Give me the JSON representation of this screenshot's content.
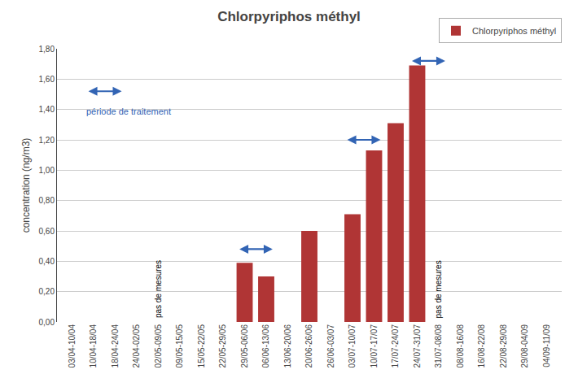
{
  "chart_data": {
    "type": "bar",
    "title": "Chlorpyriphos méthyl",
    "ylabel": "concentration (ng/m3)",
    "categories": [
      "03/04-10/04",
      "10/04-18/04",
      "18/04-24/04",
      "24/04-02/05",
      "02/05-09/05",
      "09/05-15/05",
      "15/05-22/05",
      "22/05-29/05",
      "29/05-06/06",
      "06/06-13/06",
      "13/06-20/06",
      "20/06-26/06",
      "26/06-03/07",
      "03/07-10/07",
      "10/07-17/07",
      "17/07-24/07",
      "24/07-31/07",
      "31/07-08/08",
      "08/08-16/08",
      "16/08-22/08",
      "22/08-29/08",
      "29/08-04/09",
      "04/09-11/09"
    ],
    "series": [
      {
        "name": "Chlorpyriphos méthyl",
        "color": "#b03535",
        "values": [
          0,
          0,
          0,
          0,
          0,
          0,
          0,
          0,
          0.39,
          0.3,
          0,
          0.6,
          0,
          0.71,
          1.13,
          1.31,
          1.69,
          0,
          0,
          0,
          0,
          0,
          0
        ]
      }
    ],
    "ylim": [
      0,
      1.8
    ],
    "yticks": [
      {
        "value": 0.0,
        "label": "0,00"
      },
      {
        "value": 0.2,
        "label": "0,20"
      },
      {
        "value": 0.4,
        "label": "0,40"
      },
      {
        "value": 0.6,
        "label": "0,60"
      },
      {
        "value": 0.8,
        "label": "0,80"
      },
      {
        "value": 1.0,
        "label": "1,00"
      },
      {
        "value": 1.2,
        "label": "1,20"
      },
      {
        "value": 1.4,
        "label": "1,40"
      },
      {
        "value": 1.6,
        "label": "1,60"
      },
      {
        "value": 1.8,
        "label": "1,80"
      }
    ],
    "grid": true,
    "legend": "upper right",
    "annotations": [
      {
        "text": "pas de mesures",
        "category": "02/05-09/05"
      },
      {
        "text": "pas de mesures",
        "category": "31/07-08/08"
      },
      {
        "text": "période de traitement",
        "color": "#3264b4"
      }
    ]
  }
}
